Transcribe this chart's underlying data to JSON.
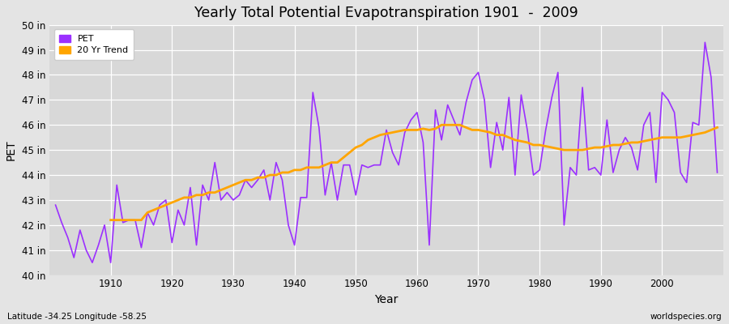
{
  "title": "Yearly Total Potential Evapotranspiration 1901  -  2009",
  "xlabel": "Year",
  "ylabel": "PET",
  "subtitle": "Latitude -34.25 Longitude -58.25",
  "watermark": "worldspecies.org",
  "ylim": [
    40,
    50
  ],
  "ytick_labels": [
    "40 in",
    "41 in",
    "42 in",
    "43 in",
    "44 in",
    "45 in",
    "46 in",
    "47 in",
    "48 in",
    "49 in",
    "50 in"
  ],
  "ytick_values": [
    40,
    41,
    42,
    43,
    44,
    45,
    46,
    47,
    48,
    49,
    50
  ],
  "pet_color": "#9B30FF",
  "trend_color": "#FFA500",
  "bg_color": "#E4E4E4",
  "plot_bg_color": "#D8D8D8",
  "years": [
    1901,
    1902,
    1903,
    1904,
    1905,
    1906,
    1907,
    1908,
    1909,
    1910,
    1911,
    1912,
    1913,
    1914,
    1915,
    1916,
    1917,
    1918,
    1919,
    1920,
    1921,
    1922,
    1923,
    1924,
    1925,
    1926,
    1927,
    1928,
    1929,
    1930,
    1931,
    1932,
    1933,
    1934,
    1935,
    1936,
    1937,
    1938,
    1939,
    1940,
    1941,
    1942,
    1943,
    1944,
    1945,
    1946,
    1947,
    1948,
    1949,
    1950,
    1951,
    1952,
    1953,
    1954,
    1955,
    1956,
    1957,
    1958,
    1959,
    1960,
    1961,
    1962,
    1963,
    1964,
    1965,
    1966,
    1967,
    1968,
    1969,
    1970,
    1971,
    1972,
    1973,
    1974,
    1975,
    1976,
    1977,
    1978,
    1979,
    1980,
    1981,
    1982,
    1983,
    1984,
    1985,
    1986,
    1987,
    1988,
    1989,
    1990,
    1991,
    1992,
    1993,
    1994,
    1995,
    1996,
    1997,
    1998,
    1999,
    2000,
    2001,
    2002,
    2003,
    2004,
    2005,
    2006,
    2007,
    2008,
    2009
  ],
  "pet_values": [
    42.8,
    42.1,
    41.5,
    40.7,
    41.8,
    41.0,
    40.5,
    41.2,
    42.0,
    40.5,
    43.6,
    42.1,
    42.2,
    42.2,
    41.1,
    42.5,
    42.0,
    42.8,
    43.0,
    41.3,
    42.6,
    42.0,
    43.5,
    41.2,
    43.6,
    43.0,
    44.5,
    43.0,
    43.3,
    43.0,
    43.2,
    43.8,
    43.5,
    43.8,
    44.2,
    43.0,
    44.5,
    43.8,
    42.0,
    41.2,
    43.1,
    43.1,
    47.3,
    45.9,
    43.2,
    44.5,
    43.0,
    44.4,
    44.4,
    43.2,
    44.4,
    44.3,
    44.4,
    44.4,
    45.8,
    44.9,
    44.4,
    45.7,
    46.2,
    46.5,
    45.3,
    41.2,
    46.6,
    45.4,
    46.8,
    46.2,
    45.6,
    46.9,
    47.8,
    48.1,
    47.0,
    44.3,
    46.1,
    45.0,
    47.1,
    44.0,
    47.2,
    45.8,
    44.0,
    44.2,
    45.8,
    47.1,
    48.1,
    42.0,
    44.3,
    44.0,
    47.5,
    44.2,
    44.3,
    44.0,
    46.2,
    44.1,
    45.0,
    45.5,
    45.1,
    44.2,
    46.0,
    46.5,
    43.7,
    47.3,
    47.0,
    46.5,
    44.1,
    43.7,
    46.1,
    46.0,
    49.3,
    47.9,
    44.1
  ],
  "trend_years": [
    1910,
    1911,
    1912,
    1913,
    1914,
    1915,
    1916,
    1917,
    1918,
    1919,
    1920,
    1921,
    1922,
    1923,
    1924,
    1925,
    1926,
    1927,
    1928,
    1929,
    1930,
    1931,
    1932,
    1933,
    1934,
    1935,
    1936,
    1937,
    1938,
    1939,
    1940,
    1941,
    1942,
    1943,
    1944,
    1945,
    1946,
    1947,
    1948,
    1949,
    1950,
    1951,
    1952,
    1953,
    1954,
    1955,
    1956,
    1957,
    1958,
    1959,
    1960,
    1961,
    1962,
    1963,
    1964,
    1965,
    1966,
    1967,
    1968,
    1969,
    1970,
    1971,
    1972,
    1973,
    1974,
    1975,
    1976,
    1977,
    1978,
    1979,
    1980,
    1981,
    1982,
    1983,
    1984,
    1985,
    1986,
    1987,
    1988,
    1989,
    1990,
    1991,
    1992,
    1993,
    1994,
    1995,
    1996,
    1997,
    1998,
    1999,
    2000,
    2001,
    2002,
    2003,
    2004,
    2005,
    2006,
    2007,
    2008,
    2009
  ],
  "trend_values": [
    42.2,
    42.2,
    42.2,
    42.2,
    42.2,
    42.2,
    42.5,
    42.6,
    42.7,
    42.8,
    42.9,
    43.0,
    43.1,
    43.1,
    43.2,
    43.2,
    43.3,
    43.3,
    43.4,
    43.5,
    43.6,
    43.7,
    43.8,
    43.8,
    43.9,
    43.9,
    44.0,
    44.0,
    44.1,
    44.1,
    44.2,
    44.2,
    44.3,
    44.3,
    44.3,
    44.4,
    44.5,
    44.5,
    44.7,
    44.9,
    45.1,
    45.2,
    45.4,
    45.5,
    45.6,
    45.65,
    45.7,
    45.75,
    45.8,
    45.8,
    45.8,
    45.85,
    45.8,
    45.85,
    46.0,
    46.0,
    46.0,
    46.0,
    45.9,
    45.8,
    45.8,
    45.75,
    45.7,
    45.6,
    45.6,
    45.5,
    45.4,
    45.35,
    45.3,
    45.2,
    45.2,
    45.15,
    45.1,
    45.05,
    45.0,
    45.0,
    45.0,
    45.0,
    45.05,
    45.1,
    45.1,
    45.15,
    45.2,
    45.2,
    45.25,
    45.3,
    45.3,
    45.35,
    45.4,
    45.45,
    45.5,
    45.5,
    45.5,
    45.5,
    45.55,
    45.6,
    45.65,
    45.7,
    45.8,
    45.9
  ]
}
